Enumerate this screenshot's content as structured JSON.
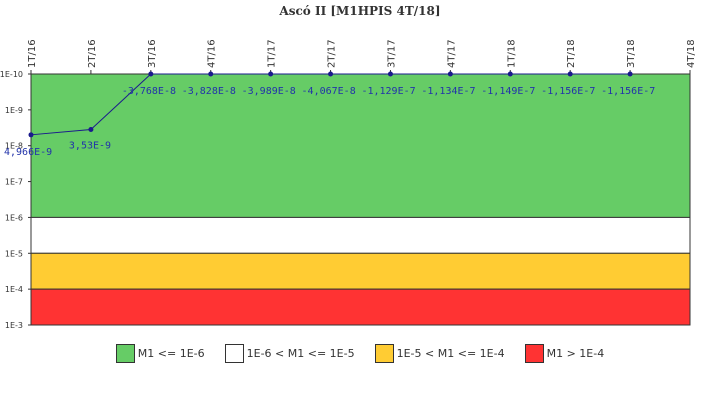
{
  "chart_data": {
    "type": "line",
    "title": "Ascó II [M1HPIS 4T/18]",
    "categories": [
      "1T/16",
      "2T/16",
      "3T/16",
      "4T/16",
      "1T/17",
      "2T/17",
      "3T/17",
      "4T/17",
      "1T/18",
      "2T/18",
      "3T/18",
      "4T/18"
    ],
    "y_scale": "log",
    "ylim": [
      1e-10,
      0.001
    ],
    "y_inverted": true,
    "y_ticks": [
      "1E-10",
      "1E-9",
      "1E-8",
      "1E-7",
      "1E-6",
      "1E-5",
      "1E-4",
      "1E-3"
    ],
    "series": [
      {
        "values": [
          4.966e-09,
          3.53e-09,
          1e-10,
          1e-10,
          1e-10,
          1e-10,
          1e-10,
          1e-10,
          1e-10,
          1e-10,
          1e-10,
          null
        ],
        "labels": [
          "4,966E-9",
          "3,53E-9",
          "-3,768E-8",
          "-3,828E-8",
          "-3,989E-8",
          "-4,067E-8",
          "-1,129E-7",
          "-1,134E-7",
          "-1,149E-7",
          "-1,156E-7",
          "-1,156E-7",
          ""
        ],
        "color": "#1a1a8c"
      }
    ],
    "bands": [
      {
        "from": 1e-10,
        "to": 1e-06,
        "color": "#66cc66",
        "legend": "M1 <= 1E-6"
      },
      {
        "from": 1e-06,
        "to": 1e-05,
        "color": "#ffffff",
        "legend": "1E-6 < M1 <= 1E-5"
      },
      {
        "from": 1e-05,
        "to": 0.0001,
        "color": "#ffcc33",
        "legend": "1E-5 < M1 <= 1E-4"
      },
      {
        "from": 0.0001,
        "to": 0.001,
        "color": "#ff3333",
        "legend": "M1 > 1E-4"
      }
    ]
  }
}
